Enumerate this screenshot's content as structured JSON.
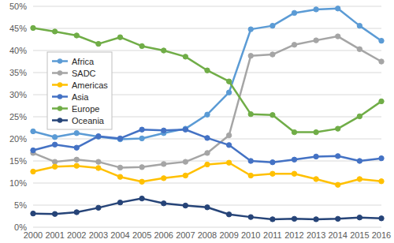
{
  "chart_data": {
    "type": "line",
    "x": [
      2000,
      2001,
      2002,
      2003,
      2004,
      2005,
      2006,
      2007,
      2008,
      2009,
      2010,
      2011,
      2012,
      2013,
      2014,
      2015,
      2016
    ],
    "xlim": [
      2000,
      2016
    ],
    "xticks": [
      2000,
      2001,
      2002,
      2003,
      2004,
      2005,
      2006,
      2007,
      2008,
      2009,
      2010,
      2011,
      2012,
      2013,
      2014,
      2015,
      2016
    ],
    "ylim": [
      0,
      50
    ],
    "yticks": [
      {
        "value": 0,
        "label": "0%"
      },
      {
        "value": 5,
        "label": "5%"
      },
      {
        "value": 10,
        "label": "10%"
      },
      {
        "value": 15,
        "label": "15%"
      },
      {
        "value": 20,
        "label": "20%"
      },
      {
        "value": 25,
        "label": "25%"
      },
      {
        "value": 30,
        "label": "30%"
      },
      {
        "value": 35,
        "label": "35%"
      },
      {
        "value": 40,
        "label": "40%"
      },
      {
        "value": 45,
        "label": "45%"
      },
      {
        "value": 50,
        "label": "50%"
      }
    ],
    "grid": true,
    "legend": "upper left",
    "marker": "circle",
    "series": [
      {
        "name": "Africa",
        "color": "#5B9BD5",
        "values": [
          21.7,
          20.4,
          21.3,
          20.5,
          19.9,
          20.1,
          21.3,
          22.3,
          25.5,
          30.5,
          44.8,
          45.6,
          48.5,
          49.3,
          49.5,
          45.6,
          42.2
        ]
      },
      {
        "name": "SADC",
        "color": "#A5A5A5",
        "values": [
          16.8,
          14.8,
          15.3,
          14.8,
          13.5,
          13.6,
          14.3,
          14.8,
          16.8,
          20.8,
          38.8,
          39.1,
          41.3,
          42.3,
          43.2,
          40.3,
          37.5
        ]
      },
      {
        "name": "Americas",
        "color": "#FFC000",
        "values": [
          12.6,
          13.7,
          13.9,
          13.4,
          11.4,
          10.3,
          11.1,
          11.7,
          14.2,
          14.6,
          11.7,
          12.1,
          12.1,
          10.9,
          9.6,
          10.9,
          10.4
        ]
      },
      {
        "name": "Asia",
        "color": "#4472C4",
        "values": [
          17.4,
          18.7,
          18.0,
          20.6,
          20.1,
          22.1,
          21.9,
          22.1,
          20.2,
          18.6,
          15.0,
          14.7,
          15.3,
          16.0,
          16.1,
          15.0,
          15.6
        ]
      },
      {
        "name": "Europe",
        "color": "#70AD47",
        "values": [
          45.1,
          44.3,
          43.4,
          41.5,
          43.0,
          41.0,
          40.0,
          38.6,
          35.5,
          33.0,
          25.6,
          25.4,
          21.5,
          21.5,
          22.3,
          25.1,
          28.5
        ]
      },
      {
        "name": "Oceania",
        "color": "#264478",
        "values": [
          3.1,
          3.0,
          3.4,
          4.4,
          5.6,
          6.5,
          5.4,
          4.9,
          4.5,
          2.9,
          2.3,
          1.8,
          1.9,
          1.8,
          1.9,
          2.2,
          2.0
        ]
      }
    ]
  }
}
